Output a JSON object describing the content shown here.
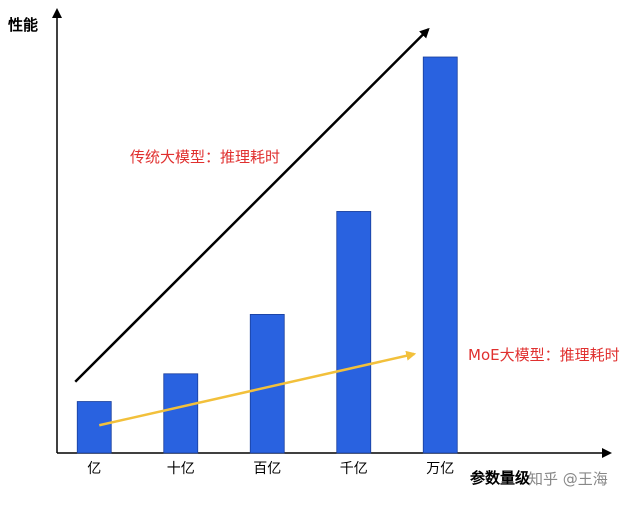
{
  "chart_data": {
    "type": "bar",
    "ylabel": "性能",
    "xlabel": "参数量级",
    "categories": [
      "亿",
      "十亿",
      "百亿",
      "千亿",
      "万亿"
    ],
    "values": [
      13,
      20,
      35,
      61,
      100
    ],
    "ylim": [
      0,
      100
    ],
    "grid": false,
    "bar_color": "#2962e0",
    "annotations": [
      {
        "text": "传统大模型：推理耗时",
        "color": "#e0302f",
        "arrow_color": "#000000",
        "arrow_from": {
          "category": "亿",
          "value": 18
        },
        "arrow_to": {
          "category": "万亿",
          "value": 107
        }
      },
      {
        "text": "MoE大模型：推理耗时",
        "color": "#e0302f",
        "arrow_color": "#f2c03b",
        "arrow_from": {
          "category": "亿",
          "value": 7
        },
        "arrow_to": {
          "category": "万亿",
          "value": 25
        }
      }
    ]
  },
  "watermark": "知乎 @王海"
}
